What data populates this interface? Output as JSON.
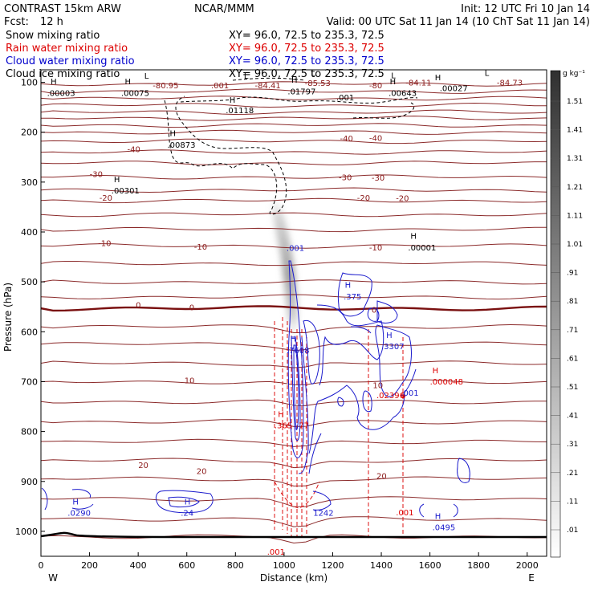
{
  "chart_data": {
    "type": "contour",
    "header": {
      "model": "CONTRAST 15km ARW",
      "center": "NCAR/MMM",
      "init": "Init: 12 UTC Fri 10 Jan 14",
      "fcst_label": "Fcst:",
      "fcst_value": "12 h",
      "valid": "Valid: 00 UTC Sat 11 Jan 14 (10 ChT Sat 11 Jan 14)"
    },
    "fields": [
      {
        "name": "Snow mixing ratio",
        "color": "#000000",
        "xy": "XY=  96.0, 72.5 to 235.3, 72.5"
      },
      {
        "name": "Rain water mixing ratio",
        "color": "#dd0000",
        "xy": "XY=  96.0, 72.5 to 235.3, 72.5"
      },
      {
        "name": "Cloud water mixing ratio",
        "color": "#0000cc",
        "xy": "XY=  96.0, 72.5 to 235.3, 72.5"
      },
      {
        "name": "Cloud ice mixing ratio",
        "color": "#000000",
        "xy": "XY=  96.0, 72.5 to 235.3, 72.5"
      }
    ],
    "x_axis": {
      "label": "Distance (km)",
      "range": [
        0,
        2080
      ],
      "ticks": [
        0,
        200,
        400,
        600,
        800,
        1000,
        1200,
        1400,
        1600,
        1800,
        2000
      ],
      "west": "W",
      "east": "E"
    },
    "y_axis": {
      "label": "Pressure (hPa)",
      "range": [
        75,
        1050
      ],
      "ticks": [
        100,
        200,
        300,
        400,
        500,
        600,
        700,
        800,
        900,
        1000
      ]
    },
    "colorbar": {
      "unit": "g kg⁻¹",
      "labels": [
        ".01",
        ".11",
        ".21",
        ".31",
        ".41",
        ".51",
        ".61",
        ".71",
        ".81",
        ".91",
        "1.01",
        "1.11",
        "1.21",
        "1.31",
        "1.41",
        "1.51"
      ]
    },
    "temperature_labels": [
      {
        "text": "-80.95",
        "x": 460,
        "p": 112
      },
      {
        "text": ".001",
        "x": 700,
        "p": 112
      },
      {
        "text": "-84.41",
        "x": 880,
        "p": 112
      },
      {
        "text": "-85.53",
        "x": 1085,
        "p": 107
      },
      {
        "text": "-80",
        "x": 1350,
        "p": 112
      },
      {
        "text": "-84.11",
        "x": 1500,
        "p": 106
      },
      {
        "text": "-84.73",
        "x": 1875,
        "p": 106
      },
      {
        "text": "-40",
        "x": 355,
        "p": 240
      },
      {
        "text": "-40",
        "x": 1230,
        "p": 218
      },
      {
        "text": "-40",
        "x": 1350,
        "p": 217
      },
      {
        "text": "-30",
        "x": 200,
        "p": 290
      },
      {
        "text": "-30",
        "x": 1225,
        "p": 296
      },
      {
        "text": "-30",
        "x": 1360,
        "p": 297
      },
      {
        "text": "-20",
        "x": 240,
        "p": 337
      },
      {
        "text": "-20",
        "x": 1300,
        "p": 337
      },
      {
        "text": "-20",
        "x": 1460,
        "p": 338
      },
      {
        "text": "-10",
        "x": 235,
        "p": 428
      },
      {
        "text": "-10",
        "x": 630,
        "p": 435
      },
      {
        "text": "-10",
        "x": 1350,
        "p": 437
      },
      {
        "text": "0",
        "x": 390,
        "p": 552
      },
      {
        "text": "0",
        "x": 610,
        "p": 557
      },
      {
        "text": "0",
        "x": 1360,
        "p": 562
      },
      {
        "text": "10",
        "x": 590,
        "p": 703
      },
      {
        "text": "10",
        "x": 1365,
        "p": 713
      },
      {
        "text": "20",
        "x": 400,
        "p": 873
      },
      {
        "text": "20",
        "x": 640,
        "p": 885
      },
      {
        "text": "20",
        "x": 1380,
        "p": 895
      }
    ],
    "black_labels": [
      {
        "text": "H",
        "x": 40,
        "p": 104
      },
      {
        "text": ".00003",
        "x": 25,
        "p": 127
      },
      {
        "text": "H",
        "x": 345,
        "p": 104
      },
      {
        "text": ".00075",
        "x": 330,
        "p": 127
      },
      {
        "text": "L",
        "x": 425,
        "p": 93
      },
      {
        "text": "L",
        "x": 835,
        "p": 93
      },
      {
        "text": "L",
        "x": 1110,
        "p": 87
      },
      {
        "text": "L",
        "x": 1440,
        "p": 92
      },
      {
        "text": "L",
        "x": 1825,
        "p": 87
      },
      {
        "text": "H",
        "x": 1030,
        "p": 101
      },
      {
        "text": ".01797",
        "x": 1015,
        "p": 124
      },
      {
        "text": ".01118",
        "x": 760,
        "p": 162
      },
      {
        "text": "H",
        "x": 775,
        "p": 141
      },
      {
        "text": ".001",
        "x": 1215,
        "p": 136
      },
      {
        "text": "H",
        "x": 1435,
        "p": 104
      },
      {
        "text": ".00643",
        "x": 1430,
        "p": 127
      },
      {
        "text": "H",
        "x": 1620,
        "p": 96
      },
      {
        "text": ".00027",
        "x": 1640,
        "p": 118
      },
      {
        "text": "H",
        "x": 530,
        "p": 208
      },
      {
        "text": ".00873",
        "x": 520,
        "p": 231
      },
      {
        "text": "H",
        "x": 300,
        "p": 300
      },
      {
        "text": ".00301",
        "x": 290,
        "p": 323
      },
      {
        "text": "H",
        "x": 1520,
        "p": 414
      },
      {
        "text": ".00001",
        "x": 1510,
        "p": 437
      }
    ],
    "rain_labels": [
      {
        "text": "H",
        "x": 975,
        "p": 771
      },
      {
        "text": ".365",
        "x": 960,
        "p": 793
      },
      {
        "text": "77",
        "x": 1060,
        "p": 793
      },
      {
        "text": "H",
        "x": 1610,
        "p": 683
      },
      {
        "text": ".000048",
        "x": 1600,
        "p": 706
      },
      {
        "text": ".02396",
        "x": 1380,
        "p": 733
      },
      {
        "text": "6",
        "x": 1480,
        "p": 733
      },
      {
        "text": ".001",
        "x": 1460,
        "p": 968
      },
      {
        "text": ".001",
        "x": 930,
        "p": 1047
      }
    ],
    "cloud_labels": [
      {
        "text": ".001",
        "x": 1010,
        "p": 438
      },
      {
        "text": "H",
        "x": 1250,
        "p": 512
      },
      {
        "text": ".375",
        "x": 1245,
        "p": 535
      },
      {
        "text": "H",
        "x": 1025,
        "p": 620
      },
      {
        "text": ".7608",
        "x": 1010,
        "p": 643
      },
      {
        "text": "H",
        "x": 1420,
        "p": 612
      },
      {
        "text": ".3307",
        "x": 1400,
        "p": 635
      },
      {
        "text": ".001",
        "x": 1480,
        "p": 728
      },
      {
        "text": "H",
        "x": 130,
        "p": 946
      },
      {
        "text": ".0290",
        "x": 110,
        "p": 969
      },
      {
        "text": "H",
        "x": 590,
        "p": 946
      },
      {
        "text": ".24",
        "x": 575,
        "p": 969
      },
      {
        "text": "1242",
        "x": 1120,
        "p": 969
      },
      {
        "text": "H",
        "x": 1620,
        "p": 975
      },
      {
        "text": ".0495",
        "x": 1610,
        "p": 998
      }
    ]
  }
}
